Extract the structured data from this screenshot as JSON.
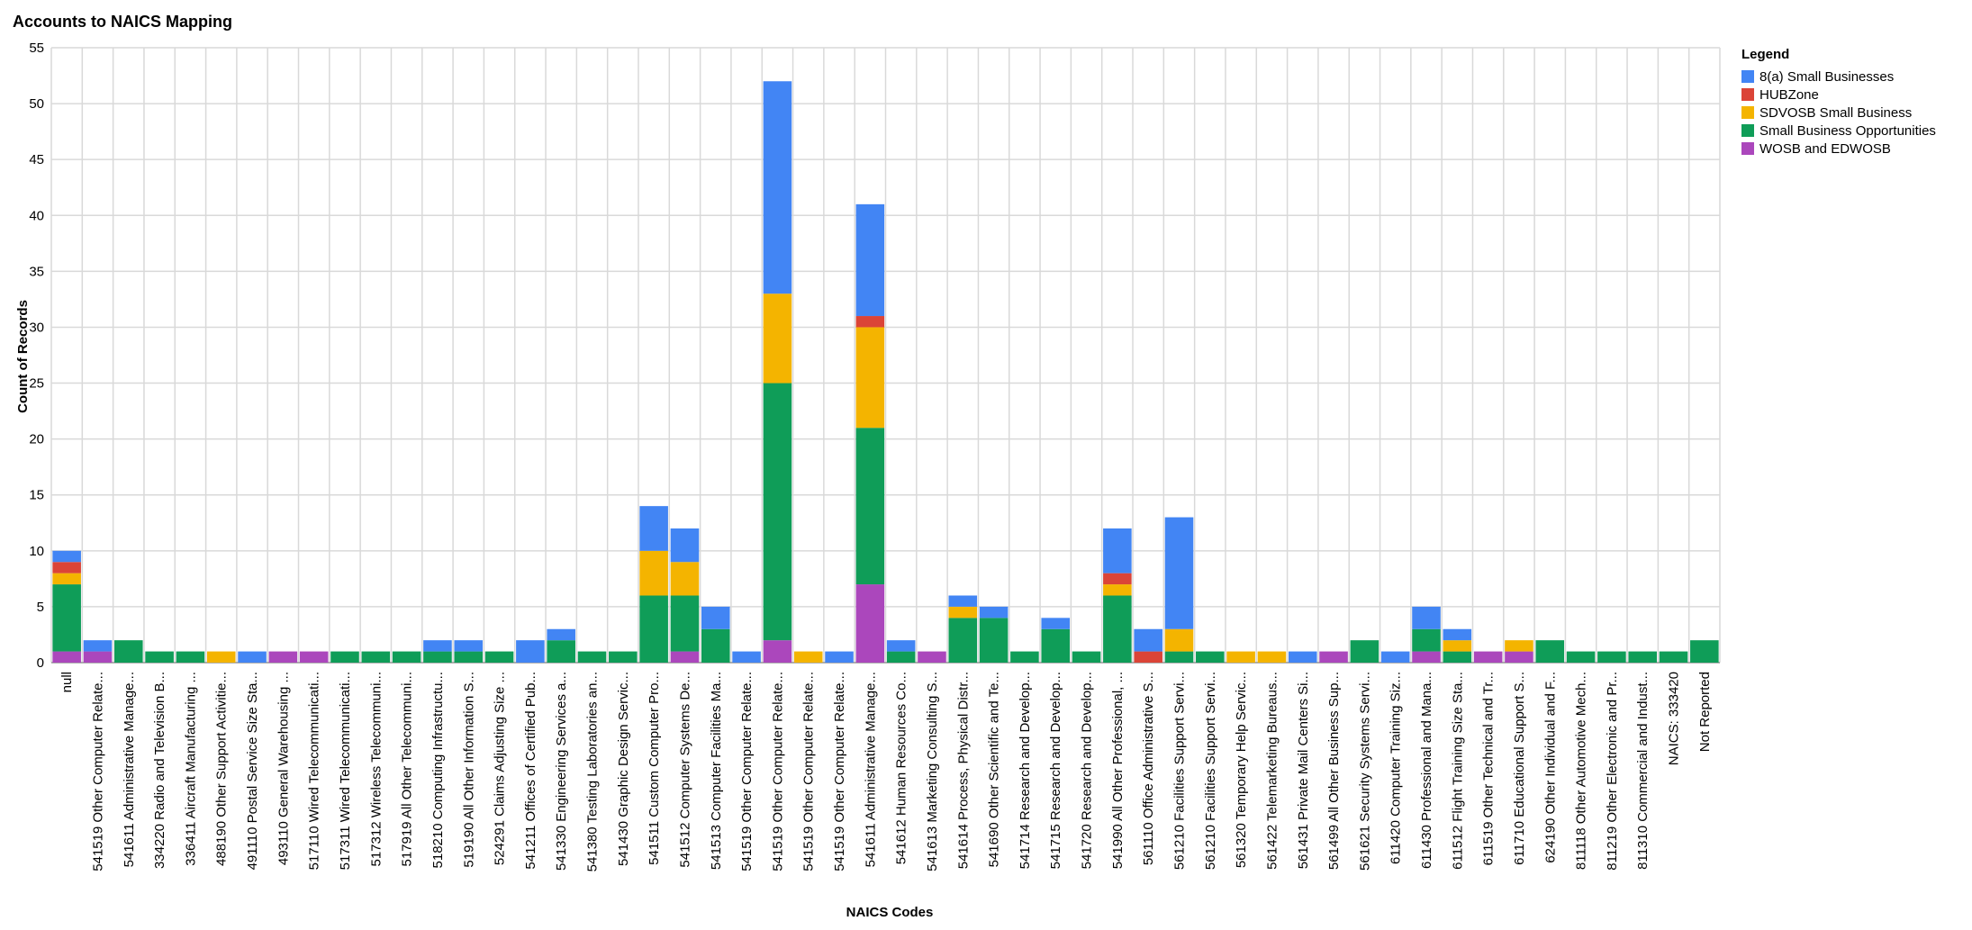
{
  "chart_data": {
    "type": "bar",
    "stacked": true,
    "title": "Accounts to NAICS Mapping",
    "xlabel": "NAICS Codes",
    "ylabel": "Count of Records",
    "ylim": [
      0,
      55
    ],
    "yticks": [
      0,
      5,
      10,
      15,
      20,
      25,
      30,
      35,
      40,
      45,
      50,
      55
    ],
    "grid": true,
    "legend": {
      "title": "Legend",
      "placement": "top-right"
    },
    "categories": [
      "null",
      "541519 Other Computer Relate...",
      "541611 Administrative Manage...",
      "334220 Radio and Television B...",
      "336411 Aircraft Manufacturing ...",
      "488190 Other Support Activitie...",
      "491110 Postal Service Size Sta...",
      "493110 General Warehousing ...",
      "517110 Wired Telecommunicati...",
      "517311 Wired Telecommunicati...",
      "517312 Wireless Telecommuni...",
      "517919 All Other Telecommuni...",
      "518210 Computing Infrastructu...",
      "519190 All Other Information S...",
      "524291 Claims Adjusting Size ...",
      "541211 Offices of Certified Pub...",
      "541330 Engineering Services a...",
      "541380 Testing Laboratories an...",
      "541430 Graphic Design Servic...",
      "541511 Custom Computer Pro...",
      "541512 Computer Systems De...",
      "541513 Computer Facilities Ma...",
      "541519 Other Computer Relate...",
      "541519 Other Computer Relate...",
      "541519 Other Computer Relate...",
      "541519 Other Computer Relate...",
      "541611 Administrative Manage...",
      "541612 Human Resources Co...",
      "541613 Marketing Consulting S...",
      "541614 Process, Physical Distr...",
      "541690 Other Scientific and Te...",
      "541714 Research and Develop...",
      "541715 Research and Develop...",
      "541720 Research and Develop...",
      "541990 All Other Professional, ...",
      "561110 Office Administrative S...",
      "561210 Facilities Support Servi...",
      "561210 Facilities Support Servi...",
      "561320 Temporary Help Servic...",
      "561422 Telemarketing Bureaus...",
      "561431 Private Mail Centers Si...",
      "561499 All Other Business Sup...",
      "561621 Security Systems Servi...",
      "611420 Computer Training Siz...",
      "611430 Professional and Mana...",
      "611512 Flight Training Size Sta...",
      "611519 Other Technical and Tr...",
      "611710 Educational Support S...",
      "624190 Other Individual and F...",
      "811118 Other Automotive Mech...",
      "811219 Other Electronic and Pr...",
      "811310 Commercial and Indust...",
      "NAICS: 333420",
      "Not Reported"
    ],
    "series": [
      {
        "name": "WOSB and EDWOSB",
        "color": "#ab47bc",
        "values": [
          1,
          1,
          0,
          0,
          0,
          0,
          0,
          1,
          1,
          0,
          0,
          0,
          0,
          0,
          0,
          0,
          0,
          0,
          0,
          0,
          1,
          0,
          0,
          2,
          0,
          0,
          7,
          0,
          1,
          0,
          0,
          0,
          0,
          0,
          0,
          0,
          0,
          0,
          0,
          0,
          0,
          1,
          0,
          0,
          1,
          0,
          1,
          1,
          0,
          0,
          0,
          0,
          0,
          0
        ]
      },
      {
        "name": "Small Business Opportunities",
        "color": "#0f9d58",
        "values": [
          6,
          0,
          2,
          1,
          1,
          0,
          0,
          0,
          0,
          1,
          1,
          1,
          1,
          1,
          1,
          0,
          2,
          1,
          1,
          6,
          5,
          3,
          0,
          23,
          0,
          0,
          14,
          1,
          0,
          4,
          4,
          1,
          3,
          1,
          6,
          0,
          1,
          1,
          0,
          0,
          0,
          0,
          2,
          0,
          2,
          1,
          0,
          0,
          2,
          1,
          1,
          1,
          1,
          2
        ]
      },
      {
        "name": "SDVOSB Small Business",
        "color": "#f4b400",
        "values": [
          1,
          0,
          0,
          0,
          0,
          1,
          0,
          0,
          0,
          0,
          0,
          0,
          0,
          0,
          0,
          0,
          0,
          0,
          0,
          4,
          3,
          0,
          0,
          8,
          1,
          0,
          9,
          0,
          0,
          1,
          0,
          0,
          0,
          0,
          1,
          0,
          2,
          0,
          1,
          1,
          0,
          0,
          0,
          0,
          0,
          1,
          0,
          1,
          0,
          0,
          0,
          0,
          0,
          0
        ]
      },
      {
        "name": "HUBZone",
        "color": "#db4437",
        "values": [
          1,
          0,
          0,
          0,
          0,
          0,
          0,
          0,
          0,
          0,
          0,
          0,
          0,
          0,
          0,
          0,
          0,
          0,
          0,
          0,
          0,
          0,
          0,
          0,
          0,
          0,
          1,
          0,
          0,
          0,
          0,
          0,
          0,
          0,
          1,
          1,
          0,
          0,
          0,
          0,
          0,
          0,
          0,
          0,
          0,
          0,
          0,
          0,
          0,
          0,
          0,
          0,
          0,
          0
        ]
      },
      {
        "name": "8(a) Small Businesses",
        "color": "#4285f4",
        "values": [
          1,
          1,
          0,
          0,
          0,
          0,
          1,
          0,
          0,
          0,
          0,
          0,
          1,
          1,
          0,
          2,
          1,
          0,
          0,
          4,
          3,
          2,
          1,
          19,
          0,
          1,
          10,
          1,
          0,
          1,
          1,
          0,
          1,
          0,
          4,
          2,
          10,
          0,
          0,
          0,
          1,
          0,
          0,
          1,
          2,
          1,
          0,
          0,
          0,
          0,
          0,
          0,
          0,
          0
        ]
      }
    ],
    "legend_order": [
      "8(a) Small Businesses",
      "HUBZone",
      "SDVOSB Small Business",
      "Small Business Opportunities",
      "WOSB and EDWOSB"
    ]
  },
  "colors": {
    "grid": "#d9d9d9",
    "axis": "#999999",
    "text": "#000000"
  }
}
